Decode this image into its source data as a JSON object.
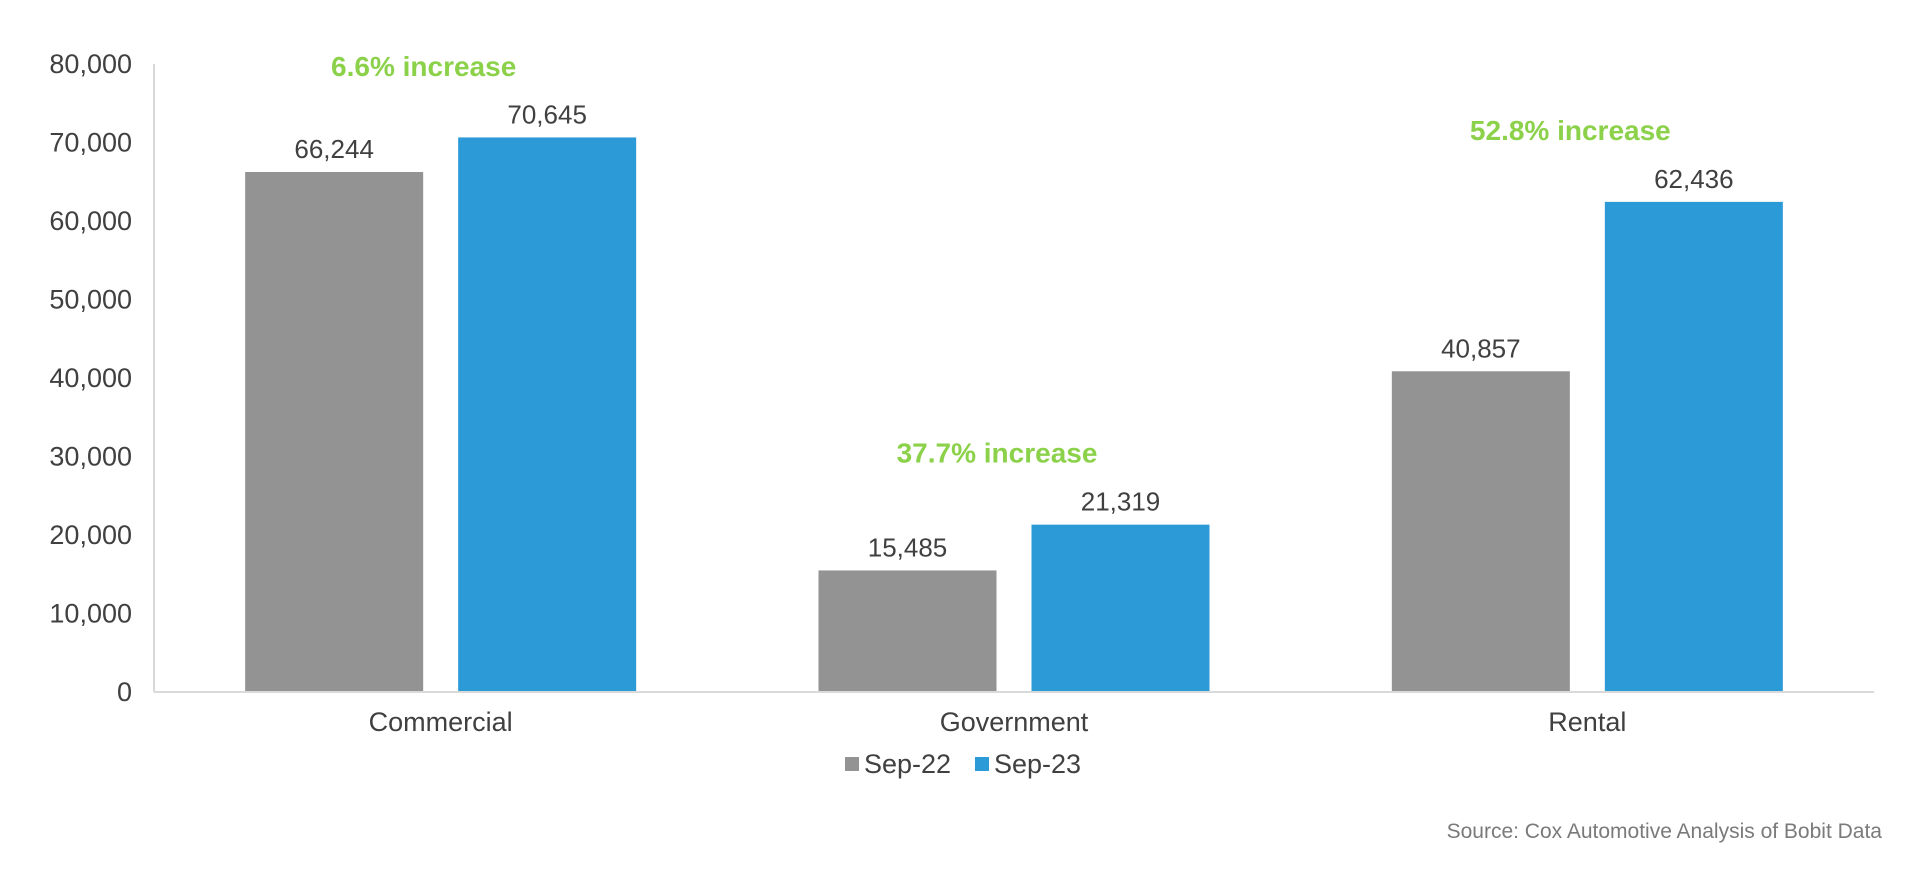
{
  "chart_data": {
    "type": "bar",
    "categories": [
      "Commercial",
      "Government",
      "Rental"
    ],
    "series": [
      {
        "name": "Sep-22",
        "color": "#939393",
        "values": [
          66244,
          15485,
          40857
        ]
      },
      {
        "name": "Sep-23",
        "color": "#2b9ad7",
        "values": [
          70645,
          21319,
          62436
        ]
      }
    ],
    "data_labels": [
      [
        "66,244",
        "15,485",
        "40,857"
      ],
      [
        "70,645",
        "21,319",
        "62,436"
      ]
    ],
    "annotations": [
      "6.6% increase",
      "37.7% increase",
      "52.8% increase"
    ],
    "annotation_color": "#8cd14a",
    "ylim": [
      0,
      80000
    ],
    "y_ticks": [
      0,
      10000,
      20000,
      30000,
      40000,
      50000,
      60000,
      70000,
      80000
    ],
    "y_tick_labels": [
      "0",
      "10,000",
      "20,000",
      "30,000",
      "40,000",
      "50,000",
      "60,000",
      "70,000",
      "80,000"
    ],
    "grid": false,
    "legend_position": "bottom-center",
    "source": "Source: Cox Automotive Analysis of Bobit Data"
  }
}
